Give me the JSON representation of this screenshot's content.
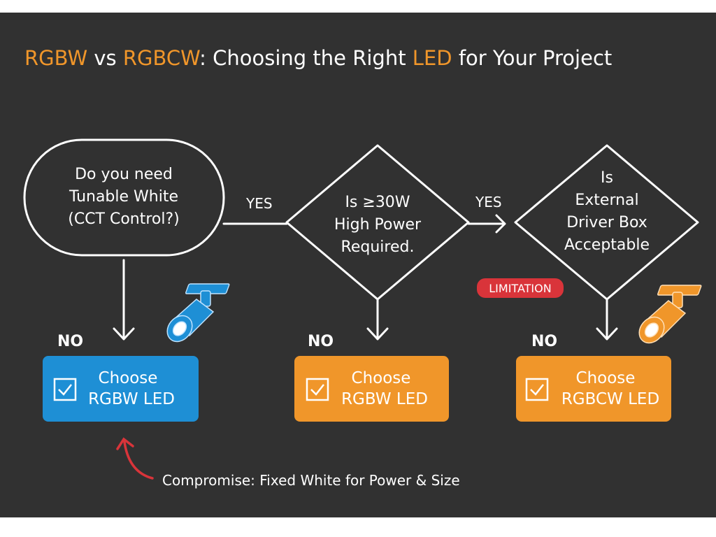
{
  "title": {
    "parts": [
      {
        "text": "RGBW",
        "color": "#f0962a"
      },
      {
        "text": " vs ",
        "color": "#ffffff"
      },
      {
        "text": "RGBCW",
        "color": "#f0962a"
      },
      {
        "text": ": Choosing the Right ",
        "color": "#ffffff"
      },
      {
        "text": "LED",
        "color": "#f0962a"
      },
      {
        "text": " for Your Project",
        "color": "#ffffff"
      }
    ]
  },
  "start_node": {
    "lines": [
      "Do you need",
      "Tunable White",
      "(CCT Control?)"
    ]
  },
  "decision1": {
    "lines": [
      "Is ≥30W",
      "High Power",
      "Required."
    ]
  },
  "decision2": {
    "lines": [
      "Is",
      "External",
      "Driver Box",
      "Acceptable"
    ]
  },
  "edges": {
    "yes1": "YES",
    "yes2": "YES",
    "no1": "NO",
    "no2": "NO",
    "no3": "NO"
  },
  "outcomes": [
    {
      "lines": [
        "Choose",
        "RGBW LED"
      ],
      "color": "#1e8fd5",
      "icon": "checkbox-check-icon"
    },
    {
      "lines": [
        "Choose",
        "RGBW LED"
      ],
      "color": "#f0962a",
      "icon": "checkbox-check-icon"
    },
    {
      "lines": [
        "Choose",
        "RGBCW LED"
      ],
      "color": "#f0962a",
      "icon": "checkbox-check-icon"
    }
  ],
  "limitation_badge": {
    "text": "LIMITATION",
    "color": "#d9343a"
  },
  "caption": "Compromise: Fixed White for Power & Size",
  "icons": {
    "lamp_blue": "spotlight-icon",
    "lamp_orange": "spotlight-icon",
    "curved_arrow": "curved-arrow-icon"
  },
  "colors": {
    "background": "#313131",
    "blue": "#1e8fd5",
    "orange": "#f0962a",
    "red": "#d9343a"
  }
}
